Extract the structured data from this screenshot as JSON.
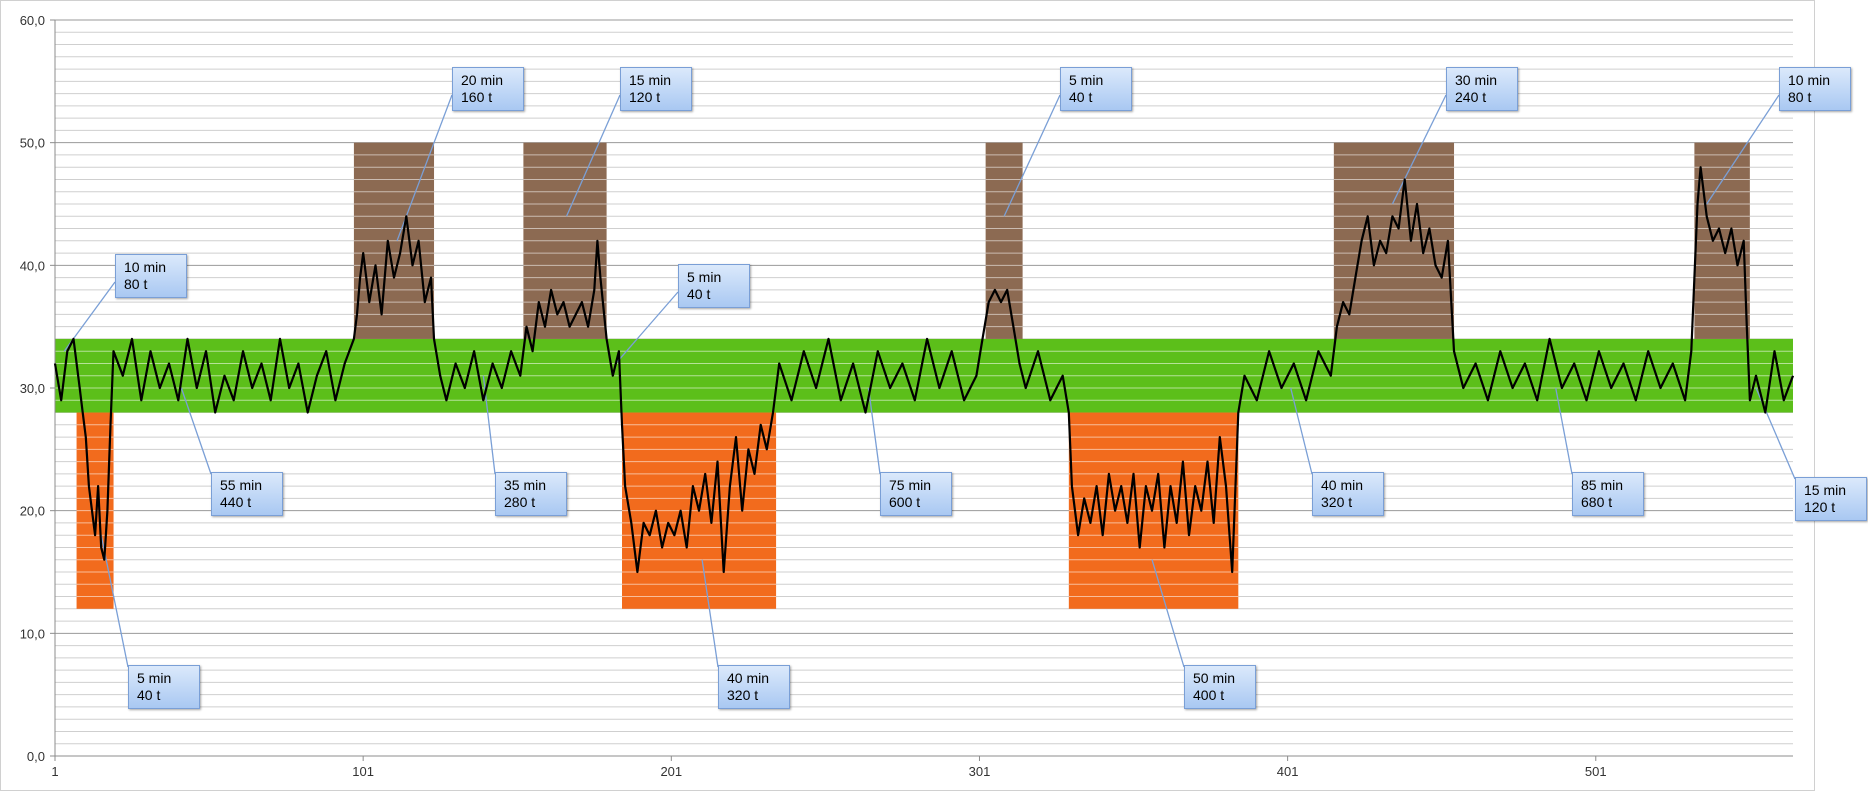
{
  "chart_data": {
    "type": "line",
    "title": "",
    "xlabel": "",
    "ylabel": "",
    "xlim": [
      1,
      565
    ],
    "ylim": [
      0,
      60
    ],
    "y_ticks": [
      "0,0",
      "10,0",
      "20,0",
      "30,0",
      "40,0",
      "50,0",
      "60,0"
    ],
    "x_ticks": [
      "1",
      "101",
      "201",
      "301",
      "401",
      "501"
    ],
    "grid": true,
    "bands": [
      {
        "kind": "normal",
        "color": "#5cbf1a",
        "x": [
          1,
          565
        ],
        "y": [
          28,
          34
        ]
      },
      {
        "kind": "low",
        "color": "#f26b1d",
        "x": [
          8,
          20
        ],
        "y": [
          12,
          28
        ]
      },
      {
        "kind": "low",
        "color": "#f26b1d",
        "x": [
          185,
          235
        ],
        "y": [
          12,
          28
        ]
      },
      {
        "kind": "low",
        "color": "#f26b1d",
        "x": [
          330,
          385
        ],
        "y": [
          12,
          28
        ]
      },
      {
        "kind": "high",
        "color": "#8c6a52",
        "x": [
          98,
          124
        ],
        "y": [
          34,
          50
        ]
      },
      {
        "kind": "high",
        "color": "#8c6a52",
        "x": [
          153,
          180
        ],
        "y": [
          34,
          50
        ]
      },
      {
        "kind": "high",
        "color": "#8c6a52",
        "x": [
          303,
          315
        ],
        "y": [
          34,
          50
        ]
      },
      {
        "kind": "high",
        "color": "#8c6a52",
        "x": [
          416,
          455
        ],
        "y": [
          34,
          50
        ]
      },
      {
        "kind": "high",
        "color": "#8c6a52",
        "x": [
          533,
          551
        ],
        "y": [
          34,
          50
        ]
      }
    ],
    "series": [
      {
        "color": "#000000",
        "points": [
          [
            1,
            32
          ],
          [
            3,
            29
          ],
          [
            5,
            33
          ],
          [
            7,
            34
          ],
          [
            9,
            30
          ],
          [
            10,
            28
          ],
          [
            11,
            26
          ],
          [
            12,
            22
          ],
          [
            13,
            20
          ],
          [
            14,
            18
          ],
          [
            15,
            22
          ],
          [
            16,
            17
          ],
          [
            17,
            16
          ],
          [
            18,
            20
          ],
          [
            19,
            27
          ],
          [
            20,
            33
          ],
          [
            23,
            31
          ],
          [
            26,
            34
          ],
          [
            29,
            29
          ],
          [
            32,
            33
          ],
          [
            35,
            30
          ],
          [
            38,
            32
          ],
          [
            41,
            29
          ],
          [
            44,
            34
          ],
          [
            47,
            30
          ],
          [
            50,
            33
          ],
          [
            53,
            28
          ],
          [
            56,
            31
          ],
          [
            59,
            29
          ],
          [
            62,
            33
          ],
          [
            65,
            30
          ],
          [
            68,
            32
          ],
          [
            71,
            29
          ],
          [
            74,
            34
          ],
          [
            77,
            30
          ],
          [
            80,
            32
          ],
          [
            83,
            28
          ],
          [
            86,
            31
          ],
          [
            89,
            33
          ],
          [
            92,
            29
          ],
          [
            95,
            32
          ],
          [
            98,
            34
          ],
          [
            99,
            36
          ],
          [
            100,
            39
          ],
          [
            101,
            41
          ],
          [
            103,
            37
          ],
          [
            105,
            40
          ],
          [
            107,
            36
          ],
          [
            109,
            42
          ],
          [
            111,
            39
          ],
          [
            113,
            41
          ],
          [
            115,
            44
          ],
          [
            117,
            40
          ],
          [
            119,
            42
          ],
          [
            121,
            37
          ],
          [
            123,
            39
          ],
          [
            124,
            34
          ],
          [
            126,
            31
          ],
          [
            128,
            29
          ],
          [
            131,
            32
          ],
          [
            134,
            30
          ],
          [
            137,
            33
          ],
          [
            140,
            29
          ],
          [
            143,
            32
          ],
          [
            146,
            30
          ],
          [
            149,
            33
          ],
          [
            152,
            31
          ],
          [
            154,
            35
          ],
          [
            156,
            33
          ],
          [
            158,
            37
          ],
          [
            160,
            35
          ],
          [
            162,
            38
          ],
          [
            164,
            36
          ],
          [
            166,
            37
          ],
          [
            168,
            35
          ],
          [
            170,
            36
          ],
          [
            172,
            37
          ],
          [
            174,
            35
          ],
          [
            176,
            38
          ],
          [
            177,
            42
          ],
          [
            178,
            39
          ],
          [
            180,
            34
          ],
          [
            182,
            31
          ],
          [
            184,
            33
          ],
          [
            185,
            27
          ],
          [
            186,
            22
          ],
          [
            188,
            19
          ],
          [
            190,
            15
          ],
          [
            192,
            19
          ],
          [
            194,
            18
          ],
          [
            196,
            20
          ],
          [
            198,
            17
          ],
          [
            200,
            19
          ],
          [
            202,
            18
          ],
          [
            204,
            20
          ],
          [
            206,
            17
          ],
          [
            208,
            22
          ],
          [
            210,
            20
          ],
          [
            212,
            23
          ],
          [
            214,
            19
          ],
          [
            216,
            24
          ],
          [
            218,
            15
          ],
          [
            220,
            22
          ],
          [
            222,
            26
          ],
          [
            224,
            20
          ],
          [
            226,
            25
          ],
          [
            228,
            23
          ],
          [
            230,
            27
          ],
          [
            232,
            25
          ],
          [
            234,
            28
          ],
          [
            236,
            32
          ],
          [
            240,
            29
          ],
          [
            244,
            33
          ],
          [
            248,
            30
          ],
          [
            252,
            34
          ],
          [
            256,
            29
          ],
          [
            260,
            32
          ],
          [
            264,
            28
          ],
          [
            268,
            33
          ],
          [
            272,
            30
          ],
          [
            276,
            32
          ],
          [
            280,
            29
          ],
          [
            284,
            34
          ],
          [
            288,
            30
          ],
          [
            292,
            33
          ],
          [
            296,
            29
          ],
          [
            300,
            31
          ],
          [
            302,
            34
          ],
          [
            304,
            37
          ],
          [
            306,
            38
          ],
          [
            308,
            37
          ],
          [
            310,
            38
          ],
          [
            312,
            35
          ],
          [
            314,
            32
          ],
          [
            316,
            30
          ],
          [
            320,
            33
          ],
          [
            324,
            29
          ],
          [
            328,
            31
          ],
          [
            330,
            28
          ],
          [
            331,
            22
          ],
          [
            333,
            18
          ],
          [
            335,
            21
          ],
          [
            337,
            19
          ],
          [
            339,
            22
          ],
          [
            341,
            18
          ],
          [
            343,
            23
          ],
          [
            345,
            20
          ],
          [
            347,
            22
          ],
          [
            349,
            19
          ],
          [
            351,
            23
          ],
          [
            353,
            17
          ],
          [
            355,
            22
          ],
          [
            357,
            20
          ],
          [
            359,
            23
          ],
          [
            361,
            17
          ],
          [
            363,
            22
          ],
          [
            365,
            19
          ],
          [
            367,
            24
          ],
          [
            369,
            18
          ],
          [
            371,
            22
          ],
          [
            373,
            20
          ],
          [
            375,
            24
          ],
          [
            377,
            19
          ],
          [
            379,
            26
          ],
          [
            381,
            22
          ],
          [
            383,
            15
          ],
          [
            385,
            28
          ],
          [
            387,
            31
          ],
          [
            391,
            29
          ],
          [
            395,
            33
          ],
          [
            399,
            30
          ],
          [
            403,
            32
          ],
          [
            407,
            29
          ],
          [
            411,
            33
          ],
          [
            415,
            31
          ],
          [
            417,
            35
          ],
          [
            419,
            37
          ],
          [
            421,
            36
          ],
          [
            423,
            39
          ],
          [
            425,
            42
          ],
          [
            427,
            44
          ],
          [
            429,
            40
          ],
          [
            431,
            42
          ],
          [
            433,
            41
          ],
          [
            435,
            44
          ],
          [
            437,
            43
          ],
          [
            439,
            47
          ],
          [
            441,
            42
          ],
          [
            443,
            45
          ],
          [
            445,
            41
          ],
          [
            447,
            43
          ],
          [
            449,
            40
          ],
          [
            451,
            39
          ],
          [
            453,
            42
          ],
          [
            455,
            33
          ],
          [
            458,
            30
          ],
          [
            462,
            32
          ],
          [
            466,
            29
          ],
          [
            470,
            33
          ],
          [
            474,
            30
          ],
          [
            478,
            32
          ],
          [
            482,
            29
          ],
          [
            486,
            34
          ],
          [
            490,
            30
          ],
          [
            494,
            32
          ],
          [
            498,
            29
          ],
          [
            502,
            33
          ],
          [
            506,
            30
          ],
          [
            510,
            32
          ],
          [
            514,
            29
          ],
          [
            518,
            33
          ],
          [
            522,
            30
          ],
          [
            526,
            32
          ],
          [
            530,
            29
          ],
          [
            532,
            33
          ],
          [
            534,
            45
          ],
          [
            535,
            48
          ],
          [
            537,
            44
          ],
          [
            539,
            42
          ],
          [
            541,
            43
          ],
          [
            543,
            41
          ],
          [
            545,
            43
          ],
          [
            547,
            40
          ],
          [
            549,
            42
          ],
          [
            550,
            35
          ],
          [
            551,
            29
          ],
          [
            553,
            31
          ],
          [
            556,
            28
          ],
          [
            559,
            33
          ],
          [
            562,
            29
          ],
          [
            565,
            31
          ]
        ]
      }
    ],
    "annotations": [
      {
        "line1": "10 min",
        "line2": "80 t",
        "point": [
          4,
          33
        ]
      },
      {
        "line1": "5 min",
        "line2": "40 t",
        "point": [
          16,
          18
        ]
      },
      {
        "line1": "55 min",
        "line2": "440 t",
        "point": [
          42,
          30
        ]
      },
      {
        "line1": "20 min",
        "line2": "160 t",
        "point": [
          112,
          42
        ]
      },
      {
        "line1": "35 min",
        "line2": "280 t",
        "point": [
          140,
          31
        ]
      },
      {
        "line1": "15 min",
        "line2": "120 t",
        "point": [
          167,
          44
        ]
      },
      {
        "line1": "5 min",
        "line2": "40 t",
        "point": [
          183,
          32
        ]
      },
      {
        "line1": "40 min",
        "line2": "320 t",
        "point": [
          211,
          16
        ]
      },
      {
        "line1": "75 min",
        "line2": "600 t",
        "point": [
          265,
          30
        ]
      },
      {
        "line1": "5 min",
        "line2": "40 t",
        "point": [
          309,
          44
        ]
      },
      {
        "line1": "50 min",
        "line2": "400 t",
        "point": [
          357,
          16
        ]
      },
      {
        "line1": "40 min",
        "line2": "320 t",
        "point": [
          402,
          30
        ]
      },
      {
        "line1": "30 min",
        "line2": "240 t",
        "point": [
          435,
          45
        ]
      },
      {
        "line1": "85 min",
        "line2": "680 t",
        "point": [
          488,
          30
        ]
      },
      {
        "line1": "10 min",
        "line2": "80 t",
        "point": [
          537,
          45
        ]
      },
      {
        "line1": "15 min",
        "line2": "120 t",
        "point": [
          553,
          30
        ]
      }
    ]
  }
}
